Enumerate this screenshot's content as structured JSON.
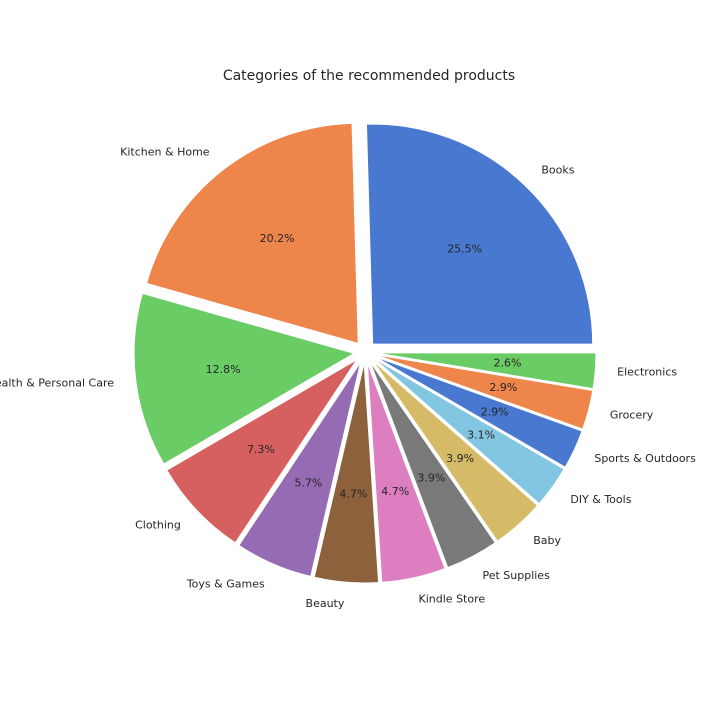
{
  "chart_data": {
    "type": "pie",
    "title": "Categories of the recommended products",
    "slices": [
      {
        "label": "Books",
        "value": 25.5,
        "pct_label": "25.5%",
        "color": "#4878d0"
      },
      {
        "label": "Kitchen & Home",
        "value": 20.2,
        "pct_label": "20.2%",
        "color": "#ee854a"
      },
      {
        "label": "Health & Personal Care",
        "value": 12.8,
        "pct_label": "12.8%",
        "color": "#6acc64"
      },
      {
        "label": "Clothing",
        "value": 7.3,
        "pct_label": "7.3%",
        "color": "#d65f5f"
      },
      {
        "label": "Toys & Games",
        "value": 5.7,
        "pct_label": "5.7%",
        "color": "#956cb4"
      },
      {
        "label": "Beauty",
        "value": 4.7,
        "pct_label": "4.7%",
        "color": "#8c613c"
      },
      {
        "label": "Kindle Store",
        "value": 4.7,
        "pct_label": "4.7%",
        "color": "#dc7ec0"
      },
      {
        "label": "Pet Supplies",
        "value": 3.9,
        "pct_label": "3.9%",
        "color": "#797979"
      },
      {
        "label": "Baby",
        "value": 3.9,
        "pct_label": "3.9%",
        "color": "#d5bb67"
      },
      {
        "label": "DIY & Tools",
        "value": 3.1,
        "pct_label": "3.1%",
        "color": "#82c6e2"
      },
      {
        "label": "Sports & Outdoors",
        "value": 2.9,
        "pct_label": "2.9%",
        "color": "#4878d0"
      },
      {
        "label": "Grocery",
        "value": 2.9,
        "pct_label": "2.9%",
        "color": "#ee854a"
      },
      {
        "label": "Electronics",
        "value": 2.6,
        "pct_label": "2.6%",
        "color": "#6acc64"
      }
    ],
    "start_angle_deg": 0,
    "direction": "counterclockwise",
    "exploded": true
  }
}
